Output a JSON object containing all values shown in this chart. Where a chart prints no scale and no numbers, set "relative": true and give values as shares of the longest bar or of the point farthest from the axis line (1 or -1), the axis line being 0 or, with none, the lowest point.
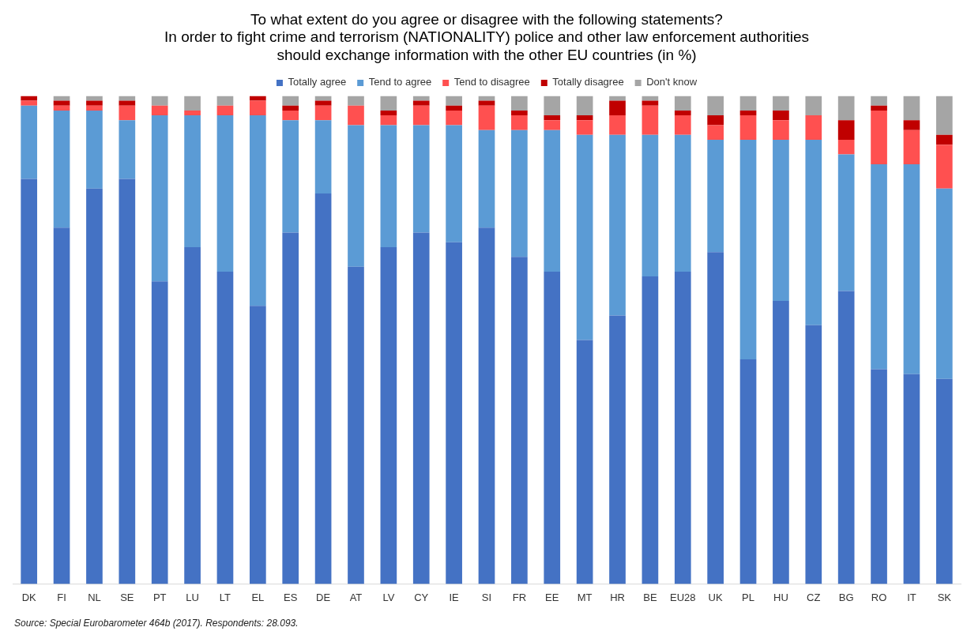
{
  "chart_data": {
    "type": "bar",
    "stacked": true,
    "relative": true,
    "title": "To what extent do you agree or disagree with the following statements?\nIn order to fight crime and terrorism (NATIONALITY) police and other law enforcement authorities\nshould exchange information with the other EU countries (in %)",
    "categories": [
      "DK",
      "FI",
      "NL",
      "SE",
      "PT",
      "LU",
      "LT",
      "EL",
      "ES",
      "DE",
      "AT",
      "LV",
      "CY",
      "IE",
      "SI",
      "FR",
      "EE",
      "MT",
      "HR",
      "BE",
      "EU28",
      "UK",
      "PL",
      "HU",
      "CZ",
      "BG",
      "RO",
      "IT",
      "SK"
    ],
    "series": [
      {
        "name": "Totally agree",
        "color": "#4472c4",
        "values": [
          0.83,
          0.73,
          0.81,
          0.83,
          0.62,
          0.69,
          0.64,
          0.57,
          0.72,
          0.8,
          0.65,
          0.69,
          0.72,
          0.7,
          0.73,
          0.67,
          0.64,
          0.5,
          0.55,
          0.63,
          0.64,
          0.68,
          0.46,
          0.58,
          0.53,
          0.6,
          0.44,
          0.43,
          0.42
        ]
      },
      {
        "name": "Tend to agree",
        "color": "#5b9bd5",
        "values": [
          0.15,
          0.24,
          0.16,
          0.12,
          0.34,
          0.27,
          0.32,
          0.39,
          0.23,
          0.15,
          0.29,
          0.25,
          0.22,
          0.24,
          0.2,
          0.26,
          0.29,
          0.42,
          0.37,
          0.29,
          0.28,
          0.23,
          0.45,
          0.33,
          0.38,
          0.28,
          0.42,
          0.43,
          0.39
        ]
      },
      {
        "name": "Tend to disagree",
        "color": "#ff5050",
        "values": [
          0.01,
          0.01,
          0.01,
          0.03,
          0.02,
          0.01,
          0.02,
          0.03,
          0.02,
          0.03,
          0.04,
          0.02,
          0.04,
          0.03,
          0.05,
          0.03,
          0.02,
          0.03,
          0.04,
          0.06,
          0.04,
          0.03,
          0.05,
          0.04,
          0.05,
          0.03,
          0.11,
          0.07,
          0.09
        ]
      },
      {
        "name": "Totally disagree",
        "color": "#c00000",
        "values": [
          0.01,
          0.01,
          0.01,
          0.01,
          0,
          0,
          0,
          0.01,
          0.01,
          0.01,
          0,
          0.01,
          0.01,
          0.01,
          0.01,
          0.01,
          0.01,
          0.01,
          0.03,
          0.01,
          0.01,
          0.02,
          0.01,
          0.02,
          0,
          0.04,
          0.01,
          0.02,
          0.02
        ]
      },
      {
        "name": "Don't know",
        "color": "#a5a5a5",
        "values": [
          0,
          0.01,
          0.01,
          0.01,
          0.02,
          0.03,
          0.02,
          0,
          0.02,
          0.01,
          0.02,
          0.03,
          0.01,
          0.02,
          0.01,
          0.03,
          0.04,
          0.04,
          0.01,
          0.01,
          0.03,
          0.04,
          0.03,
          0.03,
          0.04,
          0.05,
          0.02,
          0.05,
          0.08
        ]
      }
    ],
    "legend": "top",
    "grid": false,
    "annotations": [
      "Source: Special Eurobarometer 464b (2017). Respondents: 28.093."
    ]
  }
}
